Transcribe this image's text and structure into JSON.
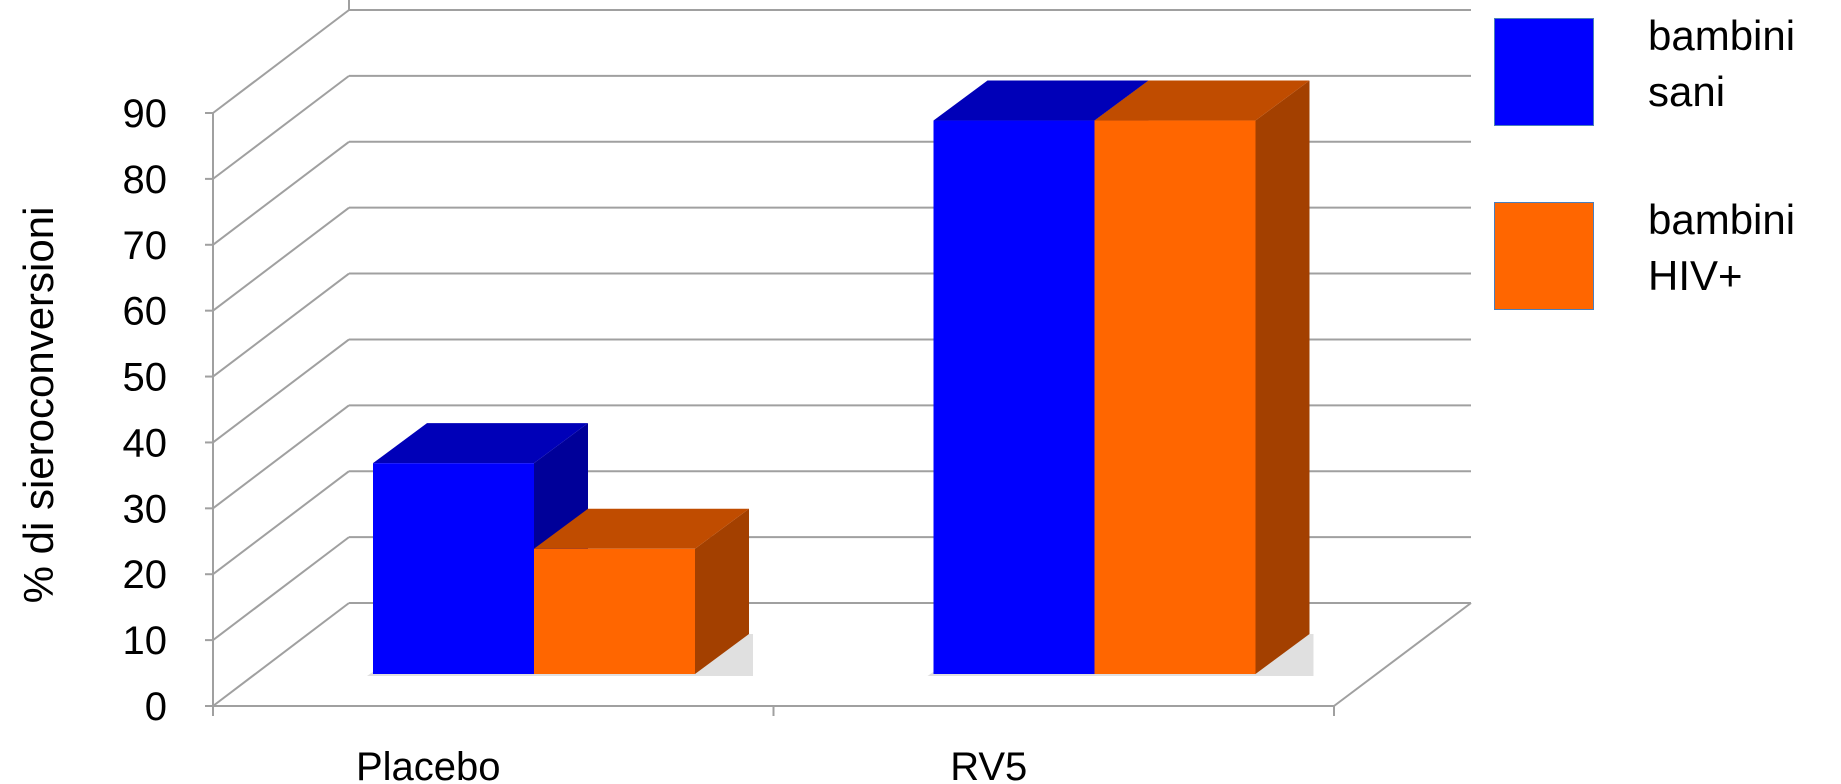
{
  "chart_data": {
    "type": "bar",
    "style": "3d-clustered-column",
    "categories": [
      "Placebo",
      "RV5"
    ],
    "series": [
      {
        "name": "bambini sani",
        "values": [
          32,
          84
        ],
        "color": "#0000ff",
        "top_color": "#0000b8",
        "side_color": "#000099"
      },
      {
        "name": "bambini HIV+",
        "values": [
          19,
          84
        ],
        "color": "#ff6600",
        "top_color": "#c04c00",
        "side_color": "#a34000"
      }
    ],
    "title": "",
    "xlabel": "",
    "ylabel": "% di sieroconversioni",
    "ylim": [
      0,
      90
    ],
    "yticks": [
      "0",
      "10",
      "20",
      "30",
      "40",
      "50",
      "60",
      "70",
      "80",
      "90"
    ],
    "grid": true,
    "legend_position": "right"
  }
}
